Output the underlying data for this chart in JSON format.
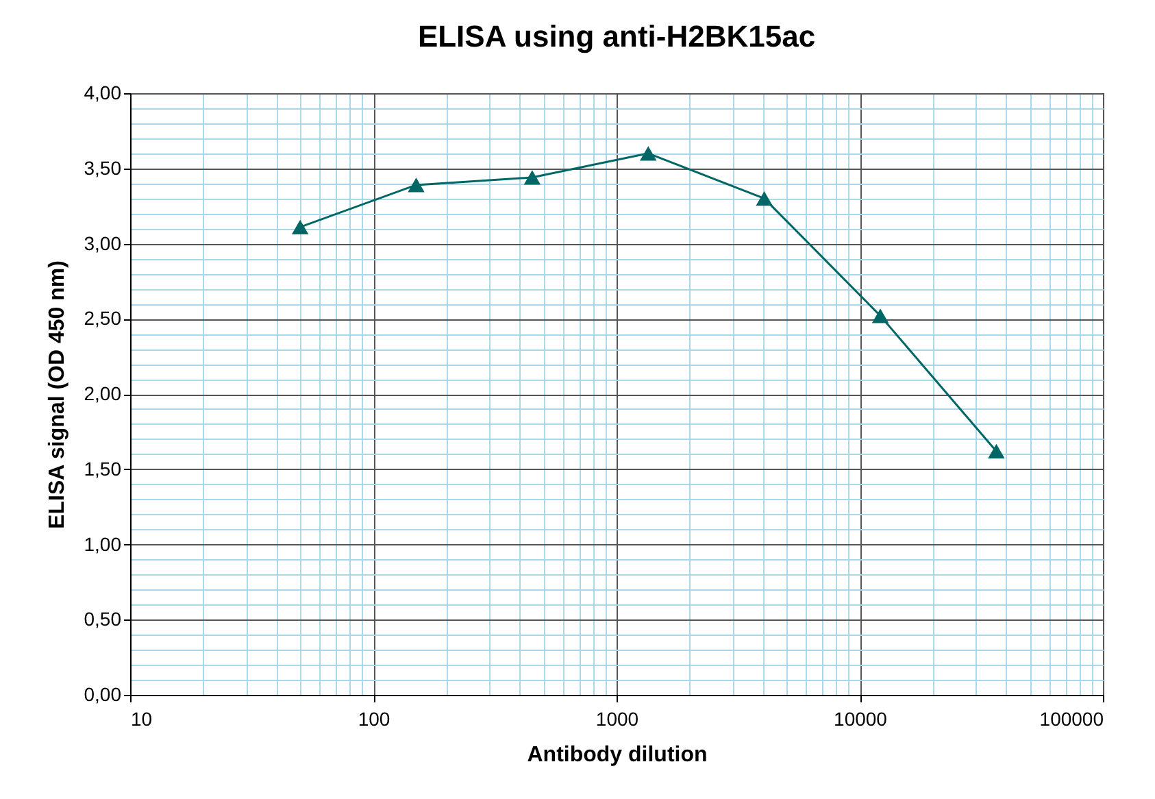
{
  "chart_data": {
    "type": "line",
    "title": "ELISA using anti-H2BK15ac",
    "xlabel": "Antibody dilution",
    "ylabel": "ELISA signal (OD 450 nm)",
    "x": [
      50,
      150,
      450,
      1350,
      4050,
      12150,
      36450
    ],
    "series": [
      {
        "color": "#006666",
        "values": [
          3.11,
          3.39,
          3.44,
          3.6,
          3.3,
          2.52,
          1.62
        ]
      }
    ],
    "log": "x",
    "xlim": [
      10,
      100000
    ],
    "xticks": [
      10,
      {
        "value": 20,
        "label": null
      },
      {
        "value": 30,
        "label": null
      },
      {
        "value": 40,
        "label": null
      },
      {
        "value": 50,
        "label": null
      },
      {
        "value": 60,
        "label": null
      },
      {
        "value": 70,
        "label": null
      },
      {
        "value": 80,
        "label": null
      },
      {
        "value": 90,
        "label": null
      },
      100,
      {
        "value": 200,
        "label": null
      },
      {
        "value": 300,
        "label": null
      },
      {
        "value": 400,
        "label": null
      },
      {
        "value": 500,
        "label": null
      },
      {
        "value": 600,
        "label": null
      },
      {
        "value": 700,
        "label": null
      },
      {
        "value": 800,
        "label": null
      },
      {
        "value": 900,
        "label": null
      },
      1000,
      {
        "value": 2000,
        "label": null
      },
      {
        "value": 3000,
        "label": null
      },
      {
        "value": 4000,
        "label": null
      },
      {
        "value": 5000,
        "label": null
      },
      {
        "value": 6000,
        "label": null
      },
      {
        "value": 7000,
        "label": null
      },
      {
        "value": 8000,
        "label": null
      },
      {
        "value": 9000,
        "label": null
      },
      10000,
      {
        "value": 20000,
        "label": null
      },
      {
        "value": 30000,
        "label": null
      },
      {
        "value": 40000,
        "label": null
      },
      {
        "value": 50000,
        "label": null
      },
      {
        "value": 60000,
        "label": null
      },
      {
        "value": 70000,
        "label": null
      },
      {
        "value": 80000,
        "label": null
      },
      {
        "value": 90000,
        "label": null
      },
      100000
    ],
    "ylim": [
      0,
      4
    ],
    "yticks": [
      {
        "value": 0,
        "label": "0,00"
      },
      {
        "value": 0.1,
        "label": null
      },
      {
        "value": 0.2,
        "label": null
      },
      {
        "value": 0.3,
        "label": null
      },
      {
        "value": 0.4,
        "label": null
      },
      {
        "value": 0.5,
        "label": "0,50"
      },
      {
        "value": 0.6,
        "label": null
      },
      {
        "value": 0.7,
        "label": null
      },
      {
        "value": 0.8,
        "label": null
      },
      {
        "value": 0.9,
        "label": null
      },
      {
        "value": 1,
        "label": "1,00"
      },
      {
        "value": 1.1,
        "label": null
      },
      {
        "value": 1.2,
        "label": null
      },
      {
        "value": 1.3,
        "label": null
      },
      {
        "value": 1.4,
        "label": null
      },
      {
        "value": 1.5,
        "label": "1,50"
      },
      {
        "value": 1.6,
        "label": null
      },
      {
        "value": 1.7,
        "label": null
      },
      {
        "value": 1.8,
        "label": null
      },
      {
        "value": 1.9,
        "label": null
      },
      {
        "value": 2,
        "label": "2,00"
      },
      {
        "value": 2.1,
        "label": null
      },
      {
        "value": 2.2,
        "label": null
      },
      {
        "value": 2.3,
        "label": null
      },
      {
        "value": 2.4,
        "label": null
      },
      {
        "value": 2.5,
        "label": "2,50"
      },
      {
        "value": 2.6,
        "label": null
      },
      {
        "value": 2.7,
        "label": null
      },
      {
        "value": 2.8,
        "label": null
      },
      {
        "value": 2.9,
        "label": null
      },
      {
        "value": 3,
        "label": "3,00"
      },
      {
        "value": 3.1,
        "label": null
      },
      {
        "value": 3.2,
        "label": null
      },
      {
        "value": 3.3,
        "label": null
      },
      {
        "value": 3.4,
        "label": null
      },
      {
        "value": 3.5,
        "label": "3,50"
      },
      {
        "value": 3.6,
        "label": null
      },
      {
        "value": 3.7,
        "label": null
      },
      {
        "value": 3.8,
        "label": null
      },
      {
        "value": 3.9,
        "label": null
      },
      {
        "value": 4,
        "label": "4,00"
      }
    ],
    "grid": true,
    "marker": "triangle",
    "line_style": "solid",
    "legend": false
  }
}
